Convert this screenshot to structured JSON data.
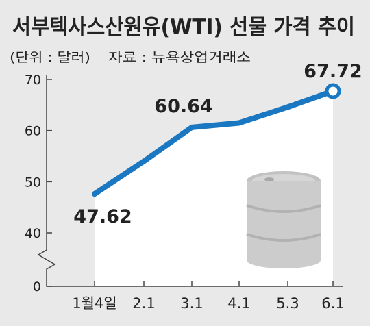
{
  "header": {
    "title": "서부텍사스산원유(WTI) 선물 가격 추이",
    "unit": "(단위 : 달러)",
    "source": "자료 : 뉴욕상업거래소"
  },
  "colors": {
    "background": "#e9e9e9",
    "plot_area": "#ffffff",
    "line": "#1a78c2",
    "text": "#222222",
    "axis": "#444444",
    "barrel": "#c8c8c8"
  },
  "chart_data": {
    "type": "line",
    "title": "서부텍사스산원유(WTI) 선물 가격 추이",
    "xlabel": "",
    "ylabel": "",
    "unit": "달러",
    "categories": [
      "1월4일",
      "2.1",
      "3.1",
      "4.1",
      "5.3",
      "6.1"
    ],
    "values": [
      47.62,
      54.0,
      60.64,
      61.5,
      64.6,
      67.72
    ],
    "data_labels": [
      {
        "index": 0,
        "text": "47.62"
      },
      {
        "index": 2,
        "text": "60.64"
      },
      {
        "index": 5,
        "text": "67.72"
      }
    ],
    "y_ticks": [
      70,
      60,
      50,
      40,
      0
    ],
    "ylim": [
      40,
      70
    ],
    "y_axis_break": true,
    "grid": false,
    "legend": "none",
    "decoration": "oil-barrel-icon"
  }
}
